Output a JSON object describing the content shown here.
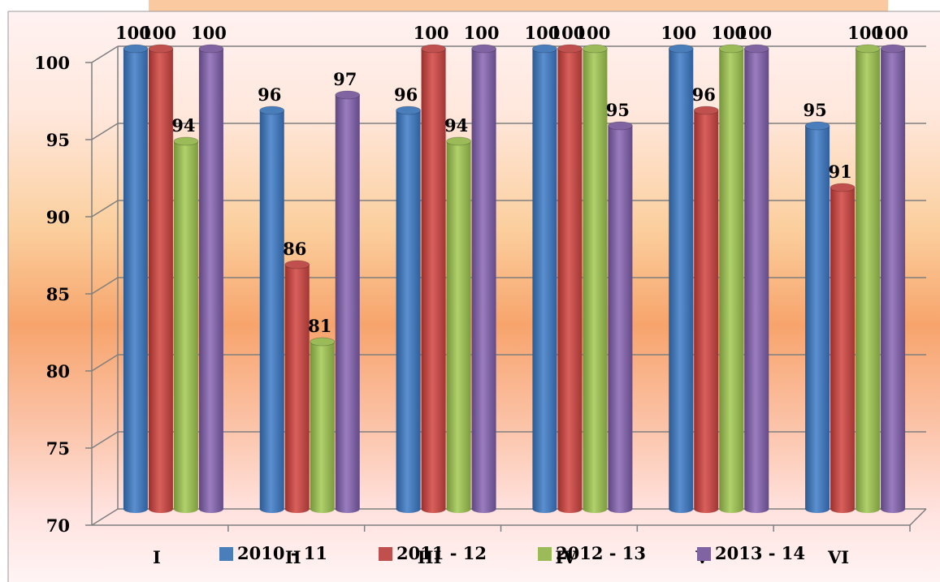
{
  "colors": {
    "title_band": "#fbc9a0",
    "background_top": "#fff3f2",
    "background_mid": "#f8a46e",
    "background_bottom": "#fff3f2",
    "grid": "#7f7f7f"
  },
  "chart_data": {
    "type": "bar",
    "title": "",
    "xlabel": "",
    "ylabel": "",
    "ylim": [
      70,
      100
    ],
    "yticks": [
      "70",
      "75",
      "80",
      "85",
      "90",
      "95",
      "100"
    ],
    "categories": [
      "I",
      "II",
      "III",
      "IV",
      "V",
      "VI"
    ],
    "series": [
      {
        "name": "2010 - 11",
        "color": "#4a7ebb",
        "values": [
          100,
          96,
          96,
          100,
          100,
          95
        ]
      },
      {
        "name": "2011 - 12",
        "color": "#c0504d",
        "values": [
          100,
          86,
          100,
          100,
          96,
          91
        ]
      },
      {
        "name": "2012 - 13",
        "color": "#9bbb59",
        "values": [
          94,
          81,
          94,
          100,
          100,
          100
        ]
      },
      {
        "name": "2013 - 14",
        "color": "#8064a2",
        "values": [
          100,
          97,
          100,
          95,
          100,
          100
        ]
      }
    ],
    "data_labels": [
      [
        "100",
        "96",
        "96",
        "100",
        "100",
        "95"
      ],
      [
        "100",
        "86",
        "100",
        "100",
        "96",
        "91"
      ],
      [
        "94",
        "81",
        "94",
        "100",
        "100",
        "100"
      ],
      [
        "100",
        "97",
        "100",
        "95",
        "100",
        "100"
      ]
    ],
    "grid": true,
    "legend_position": "bottom",
    "bar_style": "3d-cylinder"
  }
}
